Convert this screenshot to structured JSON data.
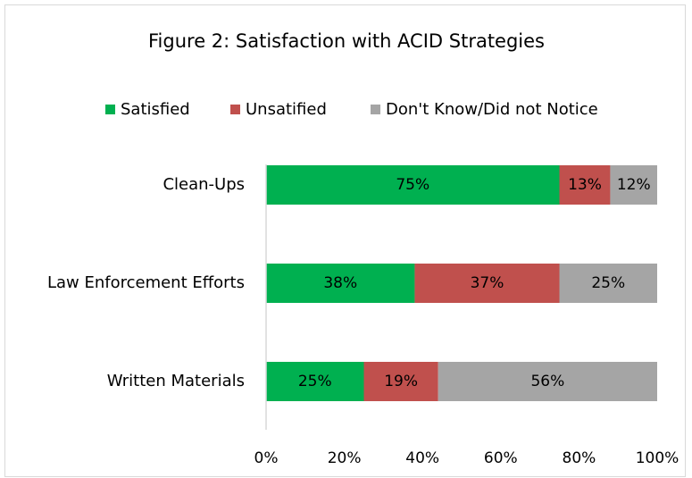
{
  "chart_data": {
    "type": "stacked_barh",
    "title": "Figure 2: Satisfaction with ACID Strategies",
    "categories": [
      "Clean-Ups",
      "Law Enforcement Efforts",
      "Written Materials"
    ],
    "series": [
      {
        "name": "Satisfied",
        "color": "#00b050",
        "values": [
          75,
          38,
          25
        ],
        "value_labels": [
          "75%",
          "38%",
          "25%"
        ]
      },
      {
        "name": "Unsatified",
        "color": "#c0504d",
        "values": [
          13,
          37,
          19
        ],
        "value_labels": [
          "13%",
          "37%",
          "19%"
        ]
      },
      {
        "name": "Don't Know/Did not Notice",
        "color": "#a5a5a5",
        "values": [
          12,
          25,
          56
        ],
        "value_labels": [
          "12%",
          "25%",
          "56%"
        ]
      }
    ],
    "xlim": [
      0,
      100
    ],
    "xticks": [
      {
        "value": 0,
        "label": "0%"
      },
      {
        "value": 20,
        "label": "20%"
      },
      {
        "value": 40,
        "label": "40%"
      },
      {
        "value": 60,
        "label": "60%"
      },
      {
        "value": 80,
        "label": "80%"
      },
      {
        "value": 100,
        "label": "100%"
      }
    ],
    "legend": "top"
  }
}
